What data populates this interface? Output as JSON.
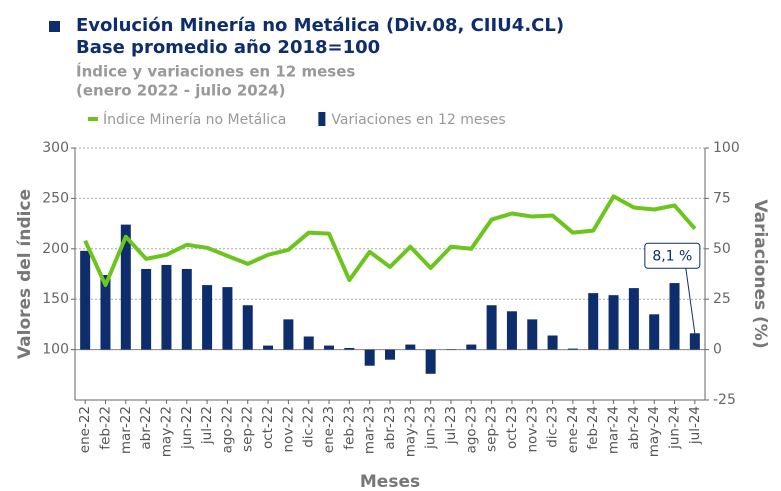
{
  "chart_data": {
    "type": "bar_line",
    "title": "Evolución Minería no Metálica (Div.08, CIIU4.CL)",
    "title2": "Base promedio año 2018=100",
    "subtitle": "Índice y variaciones en 12 meses",
    "subtitle2": "(enero 2022 - julio 2024)",
    "xlabel": "Meses",
    "ylabel": "Valores del índice",
    "y2label": "Variaciones (%)",
    "categories": [
      "ene-22",
      "feb-22",
      "mar-22",
      "abr-22",
      "may-22",
      "jun-22",
      "jul-22",
      "ago-22",
      "sep-22",
      "oct-22",
      "nov-22",
      "dic-22",
      "ene-23",
      "feb-23",
      "mar-23",
      "abr-23",
      "may-23",
      "jun-23",
      "jul-23",
      "ago-23",
      "sep-23",
      "oct-23",
      "nov-23",
      "dic-23",
      "ene-24",
      "feb-24",
      "mar-24",
      "abr-24",
      "may-24",
      "jun-24",
      "jul-24"
    ],
    "series": [
      {
        "name": "Índice Minería no Metálica",
        "color": "#6cc51c",
        "type": "line",
        "axis": "y",
        "values": [
          208,
          164,
          212,
          190,
          194,
          204,
          201,
          193,
          185,
          194,
          199,
          216,
          215,
          169,
          197,
          182,
          202,
          181,
          202,
          200,
          229,
          235,
          232,
          233,
          216,
          218,
          252,
          241,
          239,
          243,
          220
        ]
      },
      {
        "name": "Variaciones en 12 meses",
        "color": "#0d2d6c",
        "type": "bar",
        "axis": "y2",
        "values": [
          49,
          37,
          62,
          40,
          42,
          40,
          32,
          31,
          22,
          2,
          15,
          6.5,
          2,
          0.8,
          -8,
          -5,
          2.5,
          -12,
          0.2,
          2.5,
          22,
          19,
          15,
          7,
          0.5,
          28,
          27,
          30.5,
          17.5,
          33,
          8.1
        ],
        "value_labels": [
          null,
          null,
          null,
          null,
          null,
          null,
          null,
          null,
          null,
          null,
          null,
          null,
          null,
          null,
          null,
          null,
          null,
          null,
          null,
          null,
          null,
          null,
          null,
          null,
          null,
          null,
          null,
          null,
          null,
          null,
          "8,1 %"
        ]
      }
    ],
    "ylim": [
      50,
      300
    ],
    "yticks": [
      100,
      150,
      200,
      250,
      300
    ],
    "y2lim": [
      -25,
      100
    ],
    "y2ticks": [
      -25,
      0,
      25,
      50,
      75,
      100
    ],
    "grid": true,
    "legend": "top"
  }
}
